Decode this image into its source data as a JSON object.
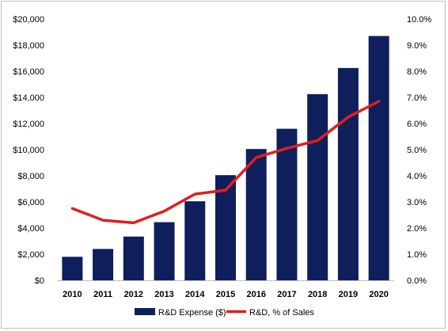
{
  "chart_data": {
    "type": "bar",
    "categories": [
      "2010",
      "2011",
      "2012",
      "2013",
      "2014",
      "2015",
      "2016",
      "2017",
      "2018",
      "2019",
      "2020"
    ],
    "series": [
      {
        "name": "R&D Expense ($)",
        "type": "bar",
        "axis": "left",
        "color": "#0f1f5c",
        "values": [
          1800,
          2400,
          3350,
          4450,
          6050,
          8050,
          10050,
          11600,
          14250,
          16250,
          18700
        ]
      },
      {
        "name": "R&D, % of Sales",
        "type": "line",
        "axis": "right",
        "color": "#e01e1e",
        "values": [
          2.75,
          2.3,
          2.2,
          2.65,
          3.3,
          3.45,
          4.7,
          5.05,
          5.35,
          6.25,
          6.85
        ]
      }
    ],
    "y_left": {
      "lim": [
        0,
        20000
      ],
      "ticks": [
        0,
        2000,
        4000,
        6000,
        8000,
        10000,
        12000,
        14000,
        16000,
        18000,
        20000
      ],
      "tick_labels": [
        "$0",
        "$2,000",
        "$4,000",
        "$6,000",
        "$8,000",
        "$10,000",
        "$12,000",
        "$14,000",
        "$16,000",
        "$18,000",
        "$20,000"
      ]
    },
    "y_right": {
      "lim": [
        0,
        10
      ],
      "ticks": [
        0,
        1,
        2,
        3,
        4,
        5,
        6,
        7,
        8,
        9,
        10
      ],
      "tick_labels": [
        "0.0%",
        "1.0%",
        "2.0%",
        "3.0%",
        "4.0%",
        "5.0%",
        "6.0%",
        "7.0%",
        "8.0%",
        "9.0%",
        "10.0%"
      ]
    },
    "grid": false,
    "legend_position": "bottom-center"
  }
}
